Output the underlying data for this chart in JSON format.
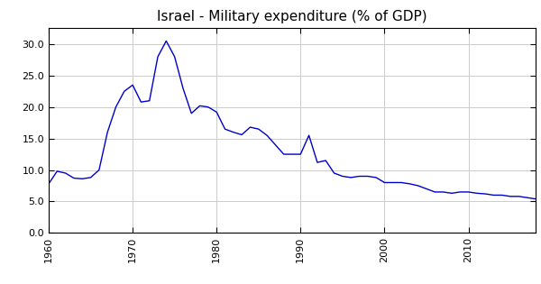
{
  "title": "Israel - Military expenditure (% of GDP)",
  "title_fontsize": 11,
  "line_color": "#0000CC",
  "line_width": 1.0,
  "background_color": "#FFFFFF",
  "grid_color": "#CCCCCC",
  "xlim": [
    1960,
    2018
  ],
  "ylim": [
    0.0,
    32.5
  ],
  "yticks": [
    0.0,
    5.0,
    10.0,
    15.0,
    20.0,
    25.0,
    30.0
  ],
  "xticks": [
    1960,
    1970,
    1980,
    1990,
    2000,
    2010
  ],
  "years": [
    1960,
    1961,
    1962,
    1963,
    1964,
    1965,
    1966,
    1967,
    1968,
    1969,
    1970,
    1971,
    1972,
    1973,
    1974,
    1975,
    1976,
    1977,
    1978,
    1979,
    1980,
    1981,
    1982,
    1983,
    1984,
    1985,
    1986,
    1987,
    1988,
    1989,
    1990,
    1991,
    1992,
    1993,
    1994,
    1995,
    1996,
    1997,
    1998,
    1999,
    2000,
    2001,
    2002,
    2003,
    2004,
    2005,
    2006,
    2007,
    2008,
    2009,
    2010,
    2011,
    2012,
    2013,
    2014,
    2015,
    2016,
    2017,
    2018
  ],
  "values": [
    7.8,
    9.8,
    9.5,
    8.7,
    8.6,
    8.8,
    10.0,
    16.0,
    20.0,
    22.5,
    23.5,
    20.8,
    21.0,
    28.0,
    30.5,
    28.0,
    23.0,
    19.0,
    20.2,
    20.0,
    19.2,
    16.5,
    16.0,
    15.6,
    16.8,
    16.5,
    15.5,
    14.0,
    12.5,
    12.5,
    12.5,
    15.5,
    11.2,
    11.5,
    9.5,
    9.0,
    8.8,
    9.0,
    9.0,
    8.8,
    8.0,
    8.0,
    8.0,
    7.8,
    7.5,
    7.0,
    6.5,
    6.5,
    6.3,
    6.5,
    6.5,
    6.3,
    6.2,
    6.0,
    6.0,
    5.8,
    5.8,
    5.6,
    5.4
  ]
}
